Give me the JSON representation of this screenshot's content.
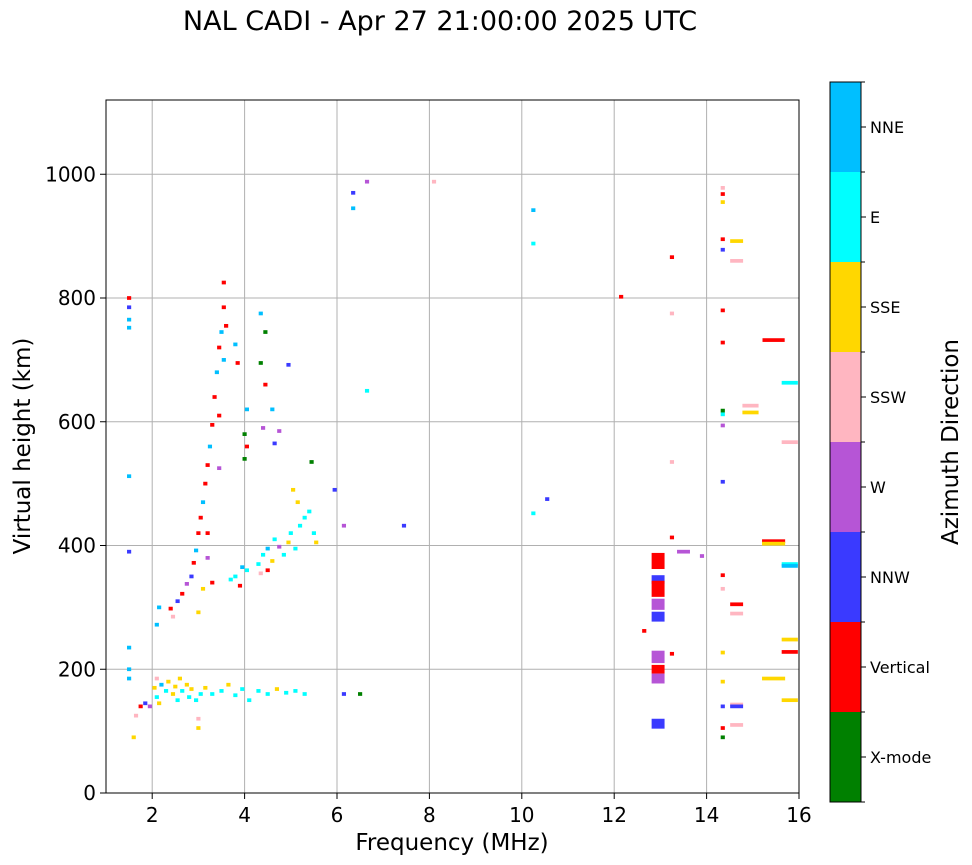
{
  "chart_data": {
    "type": "scatter",
    "title": "NAL CADI - Apr 27 21:00:00 2025 UTC",
    "xlabel": "Frequency (MHz)",
    "ylabel": "Virtual height (km)",
    "xlim": [
      1,
      16
    ],
    "ylim": [
      0,
      1120
    ],
    "xticks": [
      2,
      4,
      6,
      8,
      10,
      12,
      14,
      16
    ],
    "yticks": [
      0,
      200,
      400,
      600,
      800,
      1000
    ],
    "grid": true,
    "colorbar": {
      "label": "Azimuth Direction",
      "position": "right",
      "categories": [
        {
          "name": "X-mode",
          "color": "#008000"
        },
        {
          "name": "Vertical",
          "color": "#ff0000"
        },
        {
          "name": "NNW",
          "color": "#3a3aff"
        },
        {
          "name": "W",
          "color": "#b655d6"
        },
        {
          "name": "SSW",
          "color": "#ffb6c1"
        },
        {
          "name": "SSE",
          "color": "#ffd700"
        },
        {
          "name": "E",
          "color": "#00ffff"
        },
        {
          "name": "NNE",
          "color": "#00bfff"
        }
      ]
    },
    "echoes": [
      {
        "f": 1.5,
        "h": 800,
        "c": "Vertical"
      },
      {
        "f": 1.5,
        "h": 785,
        "c": "NNW"
      },
      {
        "f": 1.5,
        "h": 765,
        "c": "NNE"
      },
      {
        "f": 1.5,
        "h": 752,
        "c": "NNE"
      },
      {
        "f": 1.5,
        "h": 512,
        "c": "NNE"
      },
      {
        "f": 1.5,
        "h": 390,
        "c": "NNW"
      },
      {
        "f": 1.5,
        "h": 235,
        "c": "NNE"
      },
      {
        "f": 1.5,
        "h": 200,
        "c": "NNE"
      },
      {
        "f": 1.5,
        "h": 185,
        "c": "NNE"
      },
      {
        "f": 1.6,
        "h": 90,
        "c": "SSE"
      },
      {
        "f": 1.65,
        "h": 125,
        "c": "SSW"
      },
      {
        "f": 1.75,
        "h": 140,
        "c": "Vertical"
      },
      {
        "f": 1.85,
        "h": 145,
        "c": "NNW"
      },
      {
        "f": 1.95,
        "h": 140,
        "c": "W"
      },
      {
        "f": 2.05,
        "h": 170,
        "c": "SSE"
      },
      {
        "f": 2.1,
        "h": 155,
        "c": "E"
      },
      {
        "f": 2.1,
        "h": 185,
        "c": "SSW"
      },
      {
        "f": 2.15,
        "h": 145,
        "c": "SSE"
      },
      {
        "f": 2.2,
        "h": 175,
        "c": "NNE"
      },
      {
        "f": 2.3,
        "h": 165,
        "c": "E"
      },
      {
        "f": 2.35,
        "h": 180,
        "c": "SSE"
      },
      {
        "f": 2.45,
        "h": 160,
        "c": "SSE"
      },
      {
        "f": 2.5,
        "h": 172,
        "c": "SSE"
      },
      {
        "f": 2.55,
        "h": 150,
        "c": "E"
      },
      {
        "f": 2.6,
        "h": 185,
        "c": "SSE"
      },
      {
        "f": 2.65,
        "h": 165,
        "c": "E"
      },
      {
        "f": 2.75,
        "h": 175,
        "c": "SSE"
      },
      {
        "f": 2.8,
        "h": 155,
        "c": "E"
      },
      {
        "f": 2.85,
        "h": 168,
        "c": "SSE"
      },
      {
        "f": 2.95,
        "h": 150,
        "c": "E"
      },
      {
        "f": 3.05,
        "h": 160,
        "c": "E"
      },
      {
        "f": 3.15,
        "h": 170,
        "c": "SSE"
      },
      {
        "f": 3.3,
        "h": 160,
        "c": "E"
      },
      {
        "f": 3.5,
        "h": 165,
        "c": "E"
      },
      {
        "f": 3.65,
        "h": 175,
        "c": "SSE"
      },
      {
        "f": 3.8,
        "h": 158,
        "c": "E"
      },
      {
        "f": 3.95,
        "h": 168,
        "c": "E"
      },
      {
        "f": 4.1,
        "h": 150,
        "c": "E"
      },
      {
        "f": 4.3,
        "h": 165,
        "c": "E"
      },
      {
        "f": 4.5,
        "h": 160,
        "c": "E"
      },
      {
        "f": 4.7,
        "h": 168,
        "c": "SSE"
      },
      {
        "f": 4.9,
        "h": 162,
        "c": "E"
      },
      {
        "f": 5.1,
        "h": 165,
        "c": "E"
      },
      {
        "f": 5.3,
        "h": 160,
        "c": "E"
      },
      {
        "f": 3.0,
        "h": 120,
        "c": "SSW"
      },
      {
        "f": 3.0,
        "h": 105,
        "c": "SSE"
      },
      {
        "f": 2.1,
        "h": 272,
        "c": "NNE"
      },
      {
        "f": 2.15,
        "h": 300,
        "c": "NNE"
      },
      {
        "f": 2.4,
        "h": 298,
        "c": "Vertical"
      },
      {
        "f": 2.45,
        "h": 285,
        "c": "SSW"
      },
      {
        "f": 2.55,
        "h": 310,
        "c": "NNW"
      },
      {
        "f": 2.65,
        "h": 322,
        "c": "Vertical"
      },
      {
        "f": 2.75,
        "h": 338,
        "c": "W"
      },
      {
        "f": 2.85,
        "h": 350,
        "c": "NNW"
      },
      {
        "f": 2.9,
        "h": 372,
        "c": "Vertical"
      },
      {
        "f": 2.95,
        "h": 392,
        "c": "NNE"
      },
      {
        "f": 3.0,
        "h": 420,
        "c": "Vertical"
      },
      {
        "f": 3.05,
        "h": 445,
        "c": "Vertical"
      },
      {
        "f": 3.1,
        "h": 470,
        "c": "NNE"
      },
      {
        "f": 3.15,
        "h": 500,
        "c": "Vertical"
      },
      {
        "f": 3.2,
        "h": 530,
        "c": "Vertical"
      },
      {
        "f": 3.25,
        "h": 560,
        "c": "NNE"
      },
      {
        "f": 3.3,
        "h": 595,
        "c": "Vertical"
      },
      {
        "f": 3.35,
        "h": 640,
        "c": "Vertical"
      },
      {
        "f": 3.4,
        "h": 680,
        "c": "NNE"
      },
      {
        "f": 3.45,
        "h": 720,
        "c": "Vertical"
      },
      {
        "f": 3.5,
        "h": 745,
        "c": "NNE"
      },
      {
        "f": 3.55,
        "h": 785,
        "c": "Vertical"
      },
      {
        "f": 3.55,
        "h": 825,
        "c": "Vertical"
      },
      {
        "f": 3.6,
        "h": 755,
        "c": "Vertical"
      },
      {
        "f": 3.2,
        "h": 420,
        "c": "Vertical"
      },
      {
        "f": 3.2,
        "h": 380,
        "c": "W"
      },
      {
        "f": 3.1,
        "h": 330,
        "c": "SSE"
      },
      {
        "f": 3.0,
        "h": 292,
        "c": "SSE"
      },
      {
        "f": 3.3,
        "h": 340,
        "c": "Vertical"
      },
      {
        "f": 3.45,
        "h": 610,
        "c": "Vertical"
      },
      {
        "f": 3.45,
        "h": 525,
        "c": "W"
      },
      {
        "f": 3.55,
        "h": 700,
        "c": "NNE"
      },
      {
        "f": 3.7,
        "h": 345,
        "c": "E"
      },
      {
        "f": 3.8,
        "h": 350,
        "c": "E"
      },
      {
        "f": 3.9,
        "h": 335,
        "c": "Vertical"
      },
      {
        "f": 3.95,
        "h": 365,
        "c": "NNE"
      },
      {
        "f": 4.05,
        "h": 360,
        "c": "E"
      },
      {
        "f": 3.85,
        "h": 695,
        "c": "Vertical"
      },
      {
        "f": 3.8,
        "h": 725,
        "c": "NNE"
      },
      {
        "f": 4.05,
        "h": 620,
        "c": "NNE"
      },
      {
        "f": 4.05,
        "h": 560,
        "c": "Vertical"
      },
      {
        "f": 4.0,
        "h": 540,
        "c": "X-mode"
      },
      {
        "f": 4.0,
        "h": 580,
        "c": "X-mode"
      },
      {
        "f": 4.35,
        "h": 775,
        "c": "NNE"
      },
      {
        "f": 4.45,
        "h": 745,
        "c": "X-mode"
      },
      {
        "f": 4.35,
        "h": 695,
        "c": "X-mode"
      },
      {
        "f": 4.45,
        "h": 660,
        "c": "Vertical"
      },
      {
        "f": 4.4,
        "h": 590,
        "c": "W"
      },
      {
        "f": 4.6,
        "h": 620,
        "c": "NNE"
      },
      {
        "f": 4.75,
        "h": 585,
        "c": "W"
      },
      {
        "f": 4.65,
        "h": 565,
        "c": "NNW"
      },
      {
        "f": 4.95,
        "h": 692,
        "c": "NNW"
      },
      {
        "f": 4.3,
        "h": 370,
        "c": "E"
      },
      {
        "f": 4.4,
        "h": 385,
        "c": "E"
      },
      {
        "f": 4.5,
        "h": 395,
        "c": "NNE"
      },
      {
        "f": 4.6,
        "h": 375,
        "c": "SSE"
      },
      {
        "f": 4.65,
        "h": 410,
        "c": "E"
      },
      {
        "f": 4.75,
        "h": 398,
        "c": "W"
      },
      {
        "f": 4.85,
        "h": 385,
        "c": "E"
      },
      {
        "f": 4.95,
        "h": 405,
        "c": "SSE"
      },
      {
        "f": 5.0,
        "h": 420,
        "c": "E"
      },
      {
        "f": 5.1,
        "h": 395,
        "c": "E"
      },
      {
        "f": 5.2,
        "h": 432,
        "c": "E"
      },
      {
        "f": 5.3,
        "h": 445,
        "c": "E"
      },
      {
        "f": 5.4,
        "h": 455,
        "c": "E"
      },
      {
        "f": 5.5,
        "h": 420,
        "c": "E"
      },
      {
        "f": 5.55,
        "h": 405,
        "c": "SSE"
      },
      {
        "f": 5.15,
        "h": 470,
        "c": "SSE"
      },
      {
        "f": 5.05,
        "h": 490,
        "c": "SSE"
      },
      {
        "f": 5.45,
        "h": 535,
        "c": "X-mode"
      },
      {
        "f": 4.35,
        "h": 355,
        "c": "SSW"
      },
      {
        "f": 4.5,
        "h": 360,
        "c": "Vertical"
      },
      {
        "f": 5.95,
        "h": 490,
        "c": "NNW"
      },
      {
        "f": 6.15,
        "h": 432,
        "c": "W"
      },
      {
        "f": 6.15,
        "h": 160,
        "c": "NNW"
      },
      {
        "f": 6.5,
        "h": 160,
        "c": "X-mode"
      },
      {
        "f": 6.35,
        "h": 970,
        "c": "NNW"
      },
      {
        "f": 6.35,
        "h": 945,
        "c": "NNE"
      },
      {
        "f": 6.65,
        "h": 988,
        "c": "W"
      },
      {
        "f": 6.65,
        "h": 650,
        "c": "E"
      },
      {
        "f": 7.45,
        "h": 432,
        "c": "NNW"
      },
      {
        "f": 8.1,
        "h": 988,
        "c": "SSW"
      },
      {
        "f": 10.25,
        "h": 942,
        "c": "NNE"
      },
      {
        "f": 10.25,
        "h": 888,
        "c": "E"
      },
      {
        "f": 10.25,
        "h": 452,
        "c": "E"
      },
      {
        "f": 10.55,
        "h": 475,
        "c": "NNW"
      },
      {
        "f": 12.15,
        "h": 802,
        "c": "Vertical"
      },
      {
        "f": 12.65,
        "h": 262,
        "c": "Vertical"
      },
      {
        "f": 12.95,
        "h": 375,
        "c": "Vertical",
        "w": 0.28,
        "hh": 26
      },
      {
        "f": 12.95,
        "h": 345,
        "c": "NNW",
        "w": 0.28,
        "hh": 14
      },
      {
        "f": 12.95,
        "h": 330,
        "c": "Vertical",
        "w": 0.28,
        "hh": 26
      },
      {
        "f": 12.95,
        "h": 305,
        "c": "W",
        "w": 0.28,
        "hh": 18
      },
      {
        "f": 12.95,
        "h": 285,
        "c": "NNW",
        "w": 0.28,
        "hh": 16
      },
      {
        "f": 12.95,
        "h": 220,
        "c": "W",
        "w": 0.28,
        "hh": 20
      },
      {
        "f": 12.95,
        "h": 200,
        "c": "Vertical",
        "w": 0.28,
        "hh": 14
      },
      {
        "f": 12.95,
        "h": 185,
        "c": "W",
        "w": 0.28,
        "hh": 16
      },
      {
        "f": 12.95,
        "h": 112,
        "c": "NNW",
        "w": 0.28,
        "hh": 16
      },
      {
        "f": 13.25,
        "h": 866,
        "c": "Vertical"
      },
      {
        "f": 13.25,
        "h": 775,
        "c": "SSW"
      },
      {
        "f": 13.25,
        "h": 535,
        "c": "SSW"
      },
      {
        "f": 13.25,
        "h": 413,
        "c": "Vertical"
      },
      {
        "f": 13.25,
        "h": 225,
        "c": "Vertical"
      },
      {
        "f": 13.5,
        "h": 390,
        "c": "W",
        "w": 0.28
      },
      {
        "f": 13.9,
        "h": 383,
        "c": "W"
      },
      {
        "f": 14.35,
        "h": 978,
        "c": "SSW"
      },
      {
        "f": 14.35,
        "h": 968,
        "c": "Vertical"
      },
      {
        "f": 14.35,
        "h": 955,
        "c": "SSE"
      },
      {
        "f": 14.35,
        "h": 895,
        "c": "Vertical"
      },
      {
        "f": 14.35,
        "h": 878,
        "c": "NNW"
      },
      {
        "f": 14.35,
        "h": 780,
        "c": "Vertical"
      },
      {
        "f": 14.35,
        "h": 728,
        "c": "Vertical"
      },
      {
        "f": 14.35,
        "h": 618,
        "c": "X-mode"
      },
      {
        "f": 14.35,
        "h": 612,
        "c": "E"
      },
      {
        "f": 14.35,
        "h": 594,
        "c": "W"
      },
      {
        "f": 14.35,
        "h": 503,
        "c": "NNW"
      },
      {
        "f": 14.35,
        "h": 352,
        "c": "Vertical"
      },
      {
        "f": 14.35,
        "h": 330,
        "c": "SSW"
      },
      {
        "f": 14.35,
        "h": 227,
        "c": "SSE"
      },
      {
        "f": 14.35,
        "h": 180,
        "c": "SSE"
      },
      {
        "f": 14.35,
        "h": 140,
        "c": "NNW"
      },
      {
        "f": 14.35,
        "h": 105,
        "c": "Vertical"
      },
      {
        "f": 14.35,
        "h": 90,
        "c": "X-mode"
      },
      {
        "f": 14.65,
        "h": 892,
        "c": "SSE",
        "w": 0.28
      },
      {
        "f": 14.65,
        "h": 860,
        "c": "SSW",
        "w": 0.28
      },
      {
        "f": 14.65,
        "h": 305,
        "c": "Vertical",
        "w": 0.28
      },
      {
        "f": 14.65,
        "h": 290,
        "c": "SSW",
        "w": 0.28
      },
      {
        "f": 14.65,
        "h": 143,
        "c": "SSW",
        "w": 0.28
      },
      {
        "f": 14.65,
        "h": 140,
        "c": "NNW",
        "w": 0.28
      },
      {
        "f": 14.65,
        "h": 110,
        "c": "SSW",
        "w": 0.28
      },
      {
        "f": 14.95,
        "h": 626,
        "c": "SSW",
        "w": 0.35
      },
      {
        "f": 14.95,
        "h": 615,
        "c": "SSE",
        "w": 0.35
      },
      {
        "f": 15.45,
        "h": 732,
        "c": "Vertical",
        "w": 0.48
      },
      {
        "f": 15.45,
        "h": 407,
        "c": "Vertical",
        "w": 0.5
      },
      {
        "f": 15.45,
        "h": 403,
        "c": "SSE",
        "w": 0.5
      },
      {
        "f": 15.45,
        "h": 185,
        "c": "SSE",
        "w": 0.5
      },
      {
        "f": 15.8,
        "h": 663,
        "c": "E",
        "w": 0.35
      },
      {
        "f": 15.8,
        "h": 567,
        "c": "SSW",
        "w": 0.35
      },
      {
        "f": 15.8,
        "h": 370,
        "c": "E",
        "w": 0.35
      },
      {
        "f": 15.8,
        "h": 367,
        "c": "NNE",
        "w": 0.35
      },
      {
        "f": 15.8,
        "h": 248,
        "c": "SSE",
        "w": 0.35
      },
      {
        "f": 15.8,
        "h": 228,
        "c": "Vertical",
        "w": 0.35
      },
      {
        "f": 15.8,
        "h": 150,
        "c": "SSE",
        "w": 0.35
      }
    ]
  }
}
